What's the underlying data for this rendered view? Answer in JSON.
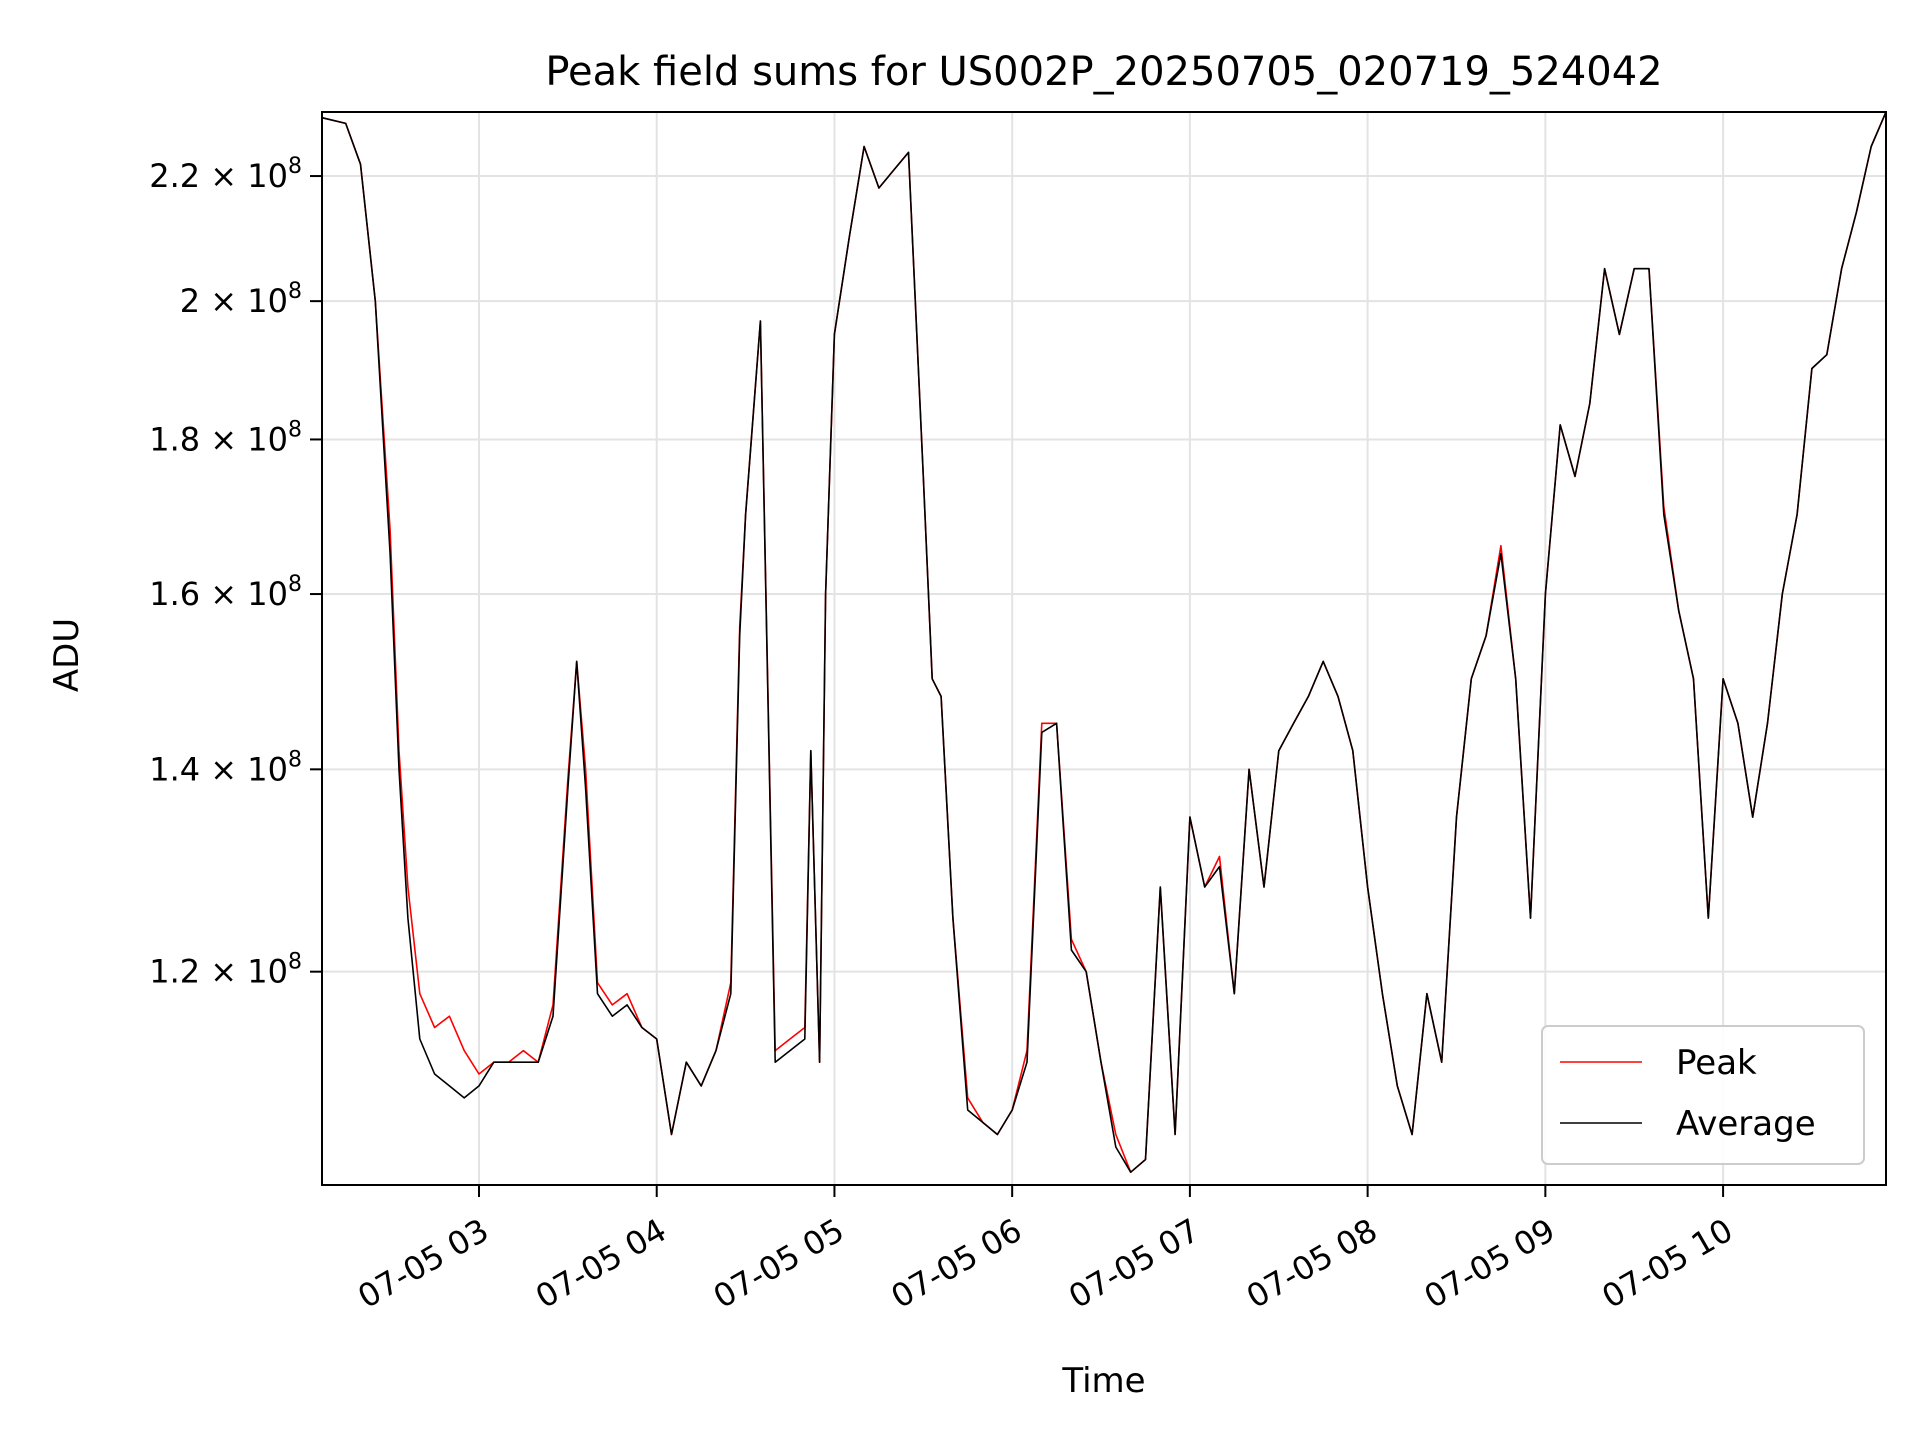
{
  "chart_data": {
    "type": "line",
    "title": "Peak field sums for US002P_20250705_020719_524042",
    "xlabel": "Time",
    "ylabel": "ADU",
    "x_unit": "time (hours, 2025-07-05)",
    "xlim": [
      "07-05 02:07",
      "07-05 10:55"
    ],
    "ylim": [
      102000000,
      231000000
    ],
    "y_scale": "log",
    "grid": true,
    "legend_position": "lower right",
    "x_ticks": [
      "07-05 03",
      "07-05 04",
      "07-05 05",
      "07-05 06",
      "07-05 07",
      "07-05 08",
      "07-05 09",
      "07-05 10"
    ],
    "y_ticks": [
      {
        "value": 120000000,
        "mantissa": "1.2",
        "exponent": "8"
      },
      {
        "value": 140000000,
        "mantissa": "1.4",
        "exponent": "8"
      },
      {
        "value": 160000000,
        "mantissa": "1.6",
        "exponent": "8"
      },
      {
        "value": 180000000,
        "mantissa": "1.8",
        "exponent": "8"
      },
      {
        "value": 200000000,
        "mantissa": "2",
        "exponent": "8"
      },
      {
        "value": 220000000,
        "mantissa": "2.2",
        "exponent": "8"
      }
    ],
    "series": [
      {
        "name": "Peak",
        "color": "#ff0000"
      },
      {
        "name": "Average",
        "color": "#000000"
      }
    ],
    "x": [
      "07-05 02:07",
      "07-05 02:15",
      "07-05 02:20",
      "07-05 02:25",
      "07-05 02:30",
      "07-05 02:33",
      "07-05 02:36",
      "07-05 02:40",
      "07-05 02:45",
      "07-05 02:50",
      "07-05 02:55",
      "07-05 03:00",
      "07-05 03:05",
      "07-05 03:10",
      "07-05 03:15",
      "07-05 03:20",
      "07-05 03:25",
      "07-05 03:30",
      "07-05 03:33",
      "07-05 03:36",
      "07-05 03:40",
      "07-05 03:45",
      "07-05 03:50",
      "07-05 03:55",
      "07-05 04:00",
      "07-05 04:05",
      "07-05 04:10",
      "07-05 04:15",
      "07-05 04:20",
      "07-05 04:25",
      "07-05 04:28",
      "07-05 04:30",
      "07-05 04:35",
      "07-05 04:40",
      "07-05 04:45",
      "07-05 04:50",
      "07-05 04:52",
      "07-05 04:55",
      "07-05 04:57",
      "07-05 05:00",
      "07-05 05:05",
      "07-05 05:10",
      "07-05 05:15",
      "07-05 05:20",
      "07-05 05:25",
      "07-05 05:30",
      "07-05 05:33",
      "07-05 05:36",
      "07-05 05:40",
      "07-05 05:45",
      "07-05 05:50",
      "07-05 05:55",
      "07-05 06:00",
      "07-05 06:05",
      "07-05 06:10",
      "07-05 06:15",
      "07-05 06:20",
      "07-05 06:25",
      "07-05 06:30",
      "07-05 06:35",
      "07-05 06:40",
      "07-05 06:45",
      "07-05 06:50",
      "07-05 06:55",
      "07-05 07:00",
      "07-05 07:05",
      "07-05 07:10",
      "07-05 07:15",
      "07-05 07:20",
      "07-05 07:25",
      "07-05 07:30",
      "07-05 07:35",
      "07-05 07:40",
      "07-05 07:45",
      "07-05 07:50",
      "07-05 07:55",
      "07-05 08:00",
      "07-05 08:05",
      "07-05 08:10",
      "07-05 08:15",
      "07-05 08:20",
      "07-05 08:25",
      "07-05 08:30",
      "07-05 08:35",
      "07-05 08:40",
      "07-05 08:45",
      "07-05 08:50",
      "07-05 08:55",
      "07-05 09:00",
      "07-05 09:05",
      "07-05 09:10",
      "07-05 09:15",
      "07-05 09:20",
      "07-05 09:25",
      "07-05 09:30",
      "07-05 09:35",
      "07-05 09:40",
      "07-05 09:45",
      "07-05 09:50",
      "07-05 09:55",
      "07-05 10:00",
      "07-05 10:05",
      "07-05 10:10",
      "07-05 10:15",
      "07-05 10:20",
      "07-05 10:25",
      "07-05 10:30",
      "07-05 10:35",
      "07-05 10:40",
      "07-05 10:45",
      "07-05 10:50",
      "07-05 10:55"
    ],
    "series_values": {
      "Average": [
        230000000,
        229000000,
        222000000,
        200000000,
        165000000,
        140000000,
        125000000,
        114000000,
        111000000,
        110000000,
        109000000,
        110000000,
        112000000,
        112000000,
        112000000,
        112000000,
        116000000,
        138000000,
        152000000,
        138000000,
        118000000,
        116000000,
        117000000,
        115000000,
        114000000,
        106000000,
        112000000,
        110000000,
        113000000,
        118000000,
        155000000,
        170000000,
        197000000,
        112000000,
        113000000,
        114000000,
        142000000,
        112000000,
        160000000,
        195000000,
        210000000,
        225000000,
        218000000,
        221000000,
        224000000,
        175000000,
        150000000,
        148000000,
        125000000,
        108000000,
        107000000,
        106000000,
        108000000,
        112000000,
        144000000,
        145000000,
        122000000,
        120000000,
        112000000,
        105000000,
        103000000,
        104000000,
        128000000,
        106000000,
        135000000,
        128000000,
        130000000,
        118000000,
        140000000,
        128000000,
        142000000,
        145000000,
        148000000,
        152000000,
        148000000,
        142000000,
        128000000,
        118000000,
        110000000,
        106000000,
        118000000,
        112000000,
        135000000,
        150000000,
        155000000,
        165000000,
        150000000,
        125000000,
        160000000,
        182000000,
        175000000,
        185000000,
        205000000,
        195000000,
        205000000,
        205000000,
        170000000,
        158000000,
        150000000,
        125000000,
        150000000,
        145000000,
        135000000,
        145000000,
        160000000,
        170000000,
        190000000,
        192000000,
        205000000,
        214000000,
        225000000,
        231000000
      ],
      "Peak": [
        230000000,
        229000000,
        222000000,
        200000000,
        168000000,
        142000000,
        128000000,
        118000000,
        115000000,
        116000000,
        113000000,
        111000000,
        112000000,
        112000000,
        113000000,
        112000000,
        117000000,
        139000000,
        152000000,
        140000000,
        119000000,
        117000000,
        118000000,
        115000000,
        114000000,
        106000000,
        112000000,
        110000000,
        113000000,
        119000000,
        156000000,
        170000000,
        197000000,
        113000000,
        114000000,
        115000000,
        142000000,
        112000000,
        160000000,
        195000000,
        210000000,
        225000000,
        218000000,
        221000000,
        224000000,
        175000000,
        150000000,
        148000000,
        125000000,
        109000000,
        107000000,
        106000000,
        108000000,
        113000000,
        145000000,
        145000000,
        123000000,
        120000000,
        112000000,
        106000000,
        103000000,
        104000000,
        128000000,
        106000000,
        135000000,
        128000000,
        131000000,
        118000000,
        140000000,
        128000000,
        142000000,
        145000000,
        148000000,
        152000000,
        148000000,
        142000000,
        128000000,
        118000000,
        110000000,
        106000000,
        118000000,
        112000000,
        135000000,
        150000000,
        155000000,
        166000000,
        150000000,
        125000000,
        160000000,
        182000000,
        175000000,
        185000000,
        205000000,
        195000000,
        205000000,
        205000000,
        171000000,
        158000000,
        150000000,
        125000000,
        150000000,
        145000000,
        135000000,
        145000000,
        160000000,
        170000000,
        190000000,
        192000000,
        205000000,
        214000000,
        225000000,
        231000000
      ]
    }
  }
}
